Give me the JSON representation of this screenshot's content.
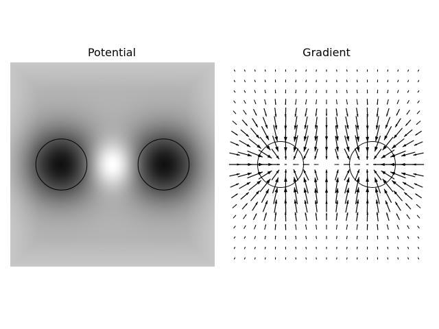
{
  "figure": {
    "titles": [
      "Potential",
      "Gradient"
    ]
  },
  "chart_data": [
    {
      "type": "heatmap",
      "title": "Potential",
      "colormap": "gray",
      "axes_visible": false,
      "charges": [
        {
          "x": -1,
          "y": 0,
          "radius": 0.5
        },
        {
          "x": 1,
          "y": 0,
          "radius": 0.5
        }
      ],
      "x_range": [
        -2,
        2
      ],
      "y_range": [
        -2,
        2
      ],
      "grid": false
    },
    {
      "type": "quiver",
      "title": "Gradient",
      "axes_visible": false,
      "grid_points": [
        19,
        19
      ],
      "arrow_color": "#000000",
      "charges": [
        {
          "x": -1,
          "y": 0,
          "radius": 0.5
        },
        {
          "x": 1,
          "y": 0,
          "radius": 0.5
        }
      ],
      "x_range": [
        -2,
        2
      ],
      "y_range": [
        -2,
        2
      ],
      "grid": false
    }
  ]
}
